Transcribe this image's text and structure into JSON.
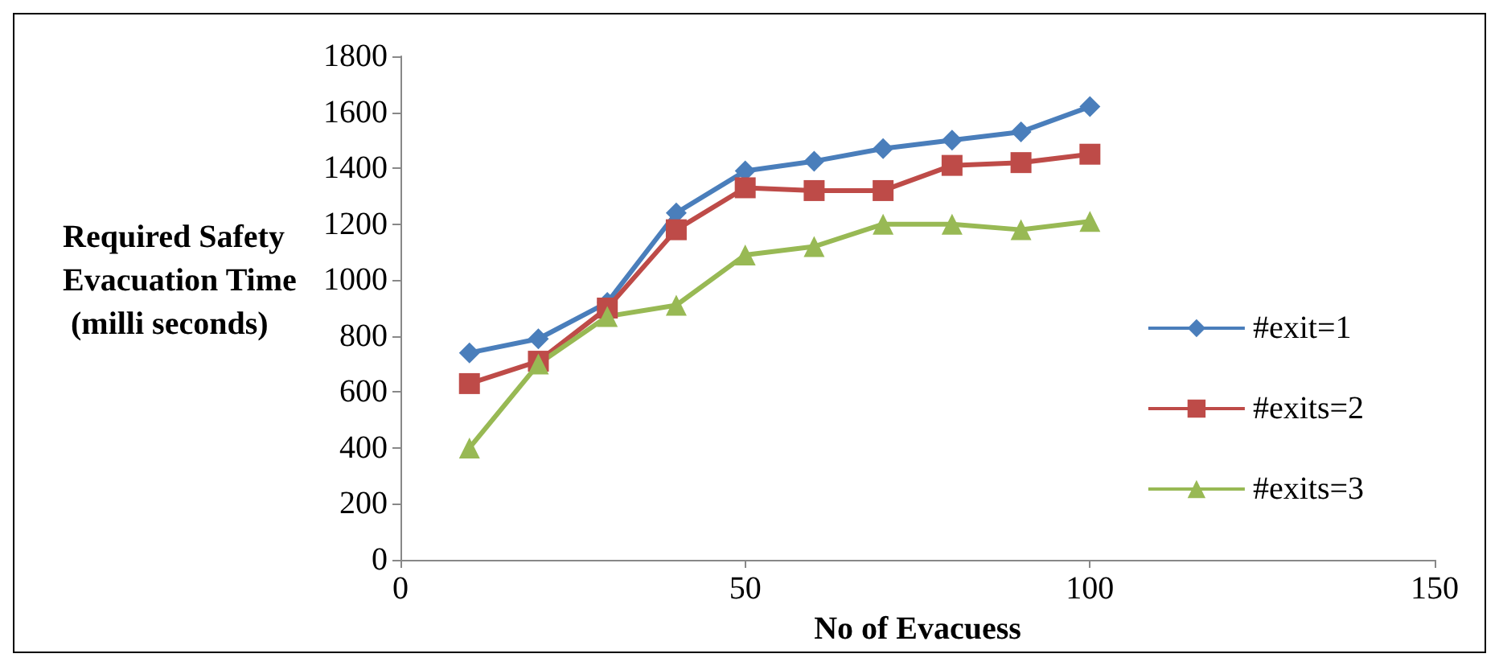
{
  "chart_data": {
    "type": "line",
    "xlabel": "No of Evacuess",
    "ylabel": "Required Safety Evacuation Time (milli seconds)",
    "xlim": [
      0,
      150
    ],
    "xticks": [
      0,
      50,
      100,
      150
    ],
    "ylim": [
      0,
      1800
    ],
    "yticks": [
      0,
      200,
      400,
      600,
      800,
      1000,
      1200,
      1400,
      1600,
      1800
    ],
    "grid": false,
    "legend": "right",
    "x": [
      10,
      20,
      30,
      40,
      50,
      60,
      70,
      80,
      90,
      100
    ],
    "series": [
      {
        "name": "#exit=1",
        "color": "#4a7ebb",
        "marker": "diamond",
        "values": [
          740,
          790,
          920,
          1240,
          1390,
          1425,
          1470,
          1500,
          1530,
          1620
        ]
      },
      {
        "name": "#exits=2",
        "color": "#be4b48",
        "marker": "square",
        "values": [
          630,
          710,
          900,
          1180,
          1330,
          1320,
          1320,
          1410,
          1420,
          1450
        ]
      },
      {
        "name": "#exits=3",
        "color": "#98b954",
        "marker": "triangle",
        "values": [
          400,
          700,
          870,
          910,
          1090,
          1120,
          1200,
          1200,
          1180,
          1210
        ]
      }
    ]
  }
}
